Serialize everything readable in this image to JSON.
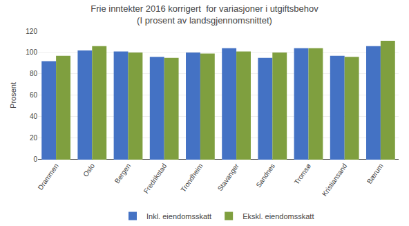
{
  "chart_data": {
    "type": "bar",
    "title": "Frie inntekter 2016 korrigert  for variasjoner i utgiftsbehov\n(I prosent av landsgjennomsnittet)",
    "ylabel": "Prosent",
    "categories": [
      "Drammen",
      "Oslo",
      "Bergen",
      "Fredrikstad",
      "Trondheim",
      "Stavanger",
      "Sandnes",
      "Tromsø",
      "Kristiansand",
      "Bærum"
    ],
    "series": [
      {
        "name": "Inkl. eiendomsskatt",
        "color": "#4472C4",
        "values": [
          92,
          102,
          101,
          96,
          100,
          104,
          95,
          104,
          97,
          106
        ]
      },
      {
        "name": "Ekskl. eiendomsskatt",
        "color": "#7F9F3F",
        "values": [
          97,
          106,
          100,
          95,
          99,
          101,
          100,
          104,
          96,
          111
        ]
      }
    ],
    "ylim": [
      0,
      120
    ],
    "yticks": [
      0,
      20,
      40,
      60,
      80,
      100,
      120
    ],
    "grid": true,
    "legend": "bottom"
  }
}
